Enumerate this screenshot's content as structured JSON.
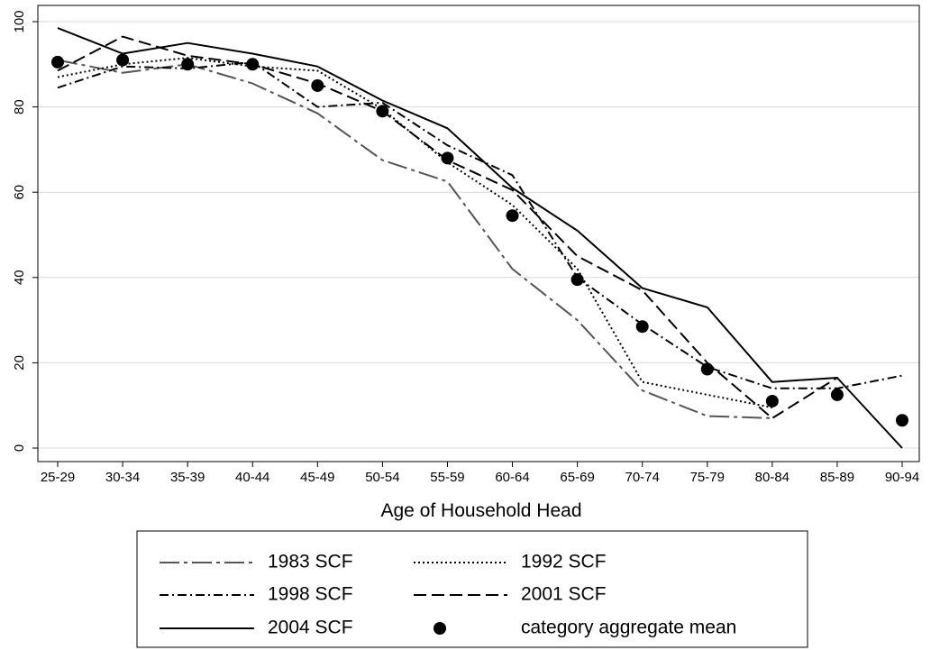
{
  "chart_data": {
    "type": "line",
    "title": "",
    "xlabel": "Age of Household Head",
    "ylabel": "",
    "categories": [
      "25-29",
      "30-34",
      "35-39",
      "40-44",
      "45-49",
      "50-54",
      "55-59",
      "60-64",
      "65-69",
      "70-74",
      "75-79",
      "80-84",
      "85-89",
      "90-94"
    ],
    "ylim": [
      0,
      100
    ],
    "yticks": [
      0,
      20,
      40,
      60,
      80,
      100
    ],
    "grid": "horizontal",
    "legend_position": "bottom",
    "series": [
      {
        "name": "1983 SCF",
        "style": "longdash-dot",
        "color": "#555555",
        "values": [
          91,
          88,
          90,
          85.5,
          78.5,
          67.5,
          62.5,
          42,
          30,
          13.5,
          7.5,
          7,
          null,
          null
        ]
      },
      {
        "name": "1992 SCF",
        "style": "dotted",
        "color": "#000000",
        "values": [
          87,
          90,
          91.5,
          89.5,
          88.5,
          79.5,
          67,
          57,
          42,
          15.5,
          12.5,
          9.5,
          null,
          null
        ]
      },
      {
        "name": "1998 SCF",
        "style": "dash-dot",
        "color": "#000000",
        "values": [
          84.5,
          89.5,
          89,
          90.5,
          80,
          81,
          71,
          64,
          40,
          29,
          19,
          14,
          14,
          17
        ]
      },
      {
        "name": "2001 SCF",
        "style": "dashed",
        "color": "#000000",
        "values": [
          88.5,
          96.5,
          92,
          90,
          85.5,
          79,
          67.5,
          60.5,
          45,
          37,
          20,
          7,
          16.5,
          null
        ]
      },
      {
        "name": "2004 SCF",
        "style": "solid",
        "color": "#000000",
        "values": [
          98.5,
          92.5,
          95,
          92.5,
          89.5,
          81.5,
          75,
          61,
          51,
          37.5,
          33,
          15.5,
          16.5,
          0
        ]
      },
      {
        "name": "category aggregate mean",
        "style": "markers",
        "color": "#000000",
        "values": [
          90.5,
          91,
          90,
          90,
          85,
          79,
          68,
          54.5,
          39.5,
          28.5,
          18.5,
          11,
          12.5,
          6.5
        ]
      }
    ]
  }
}
